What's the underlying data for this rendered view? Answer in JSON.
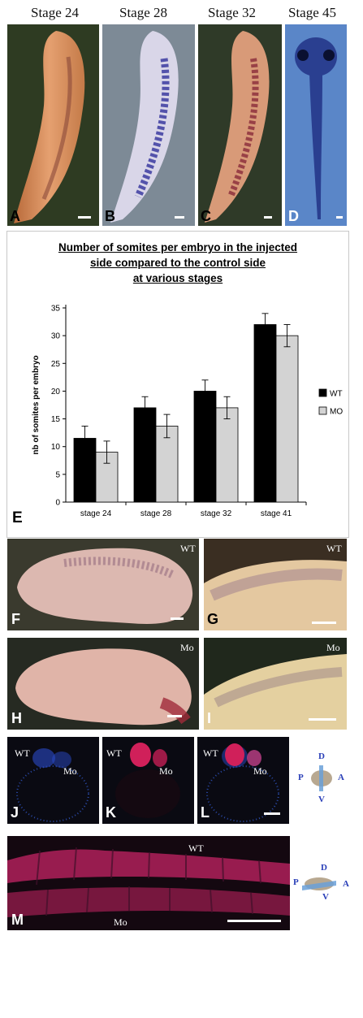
{
  "top_row": {
    "stages": [
      "Stage 24",
      "Stage 28",
      "Stage 32",
      "Stage 45"
    ],
    "letters": [
      "A",
      "B",
      "C",
      "D"
    ]
  },
  "chart_data": {
    "type": "bar",
    "panel_letter": "E",
    "title_lines": [
      "Number of somites per embryo in the injected",
      "side compared to the control side",
      "at various stages"
    ],
    "categories": [
      "stage 24",
      "stage 28",
      "stage 32",
      "stage 41"
    ],
    "series": [
      {
        "name": "WT",
        "values": [
          11.5,
          17,
          20,
          32
        ],
        "errors": [
          2.2,
          2.0,
          2.0,
          2.0
        ],
        "color": "#000000"
      },
      {
        "name": "MO",
        "values": [
          9,
          13.7,
          17,
          30
        ],
        "errors": [
          2.0,
          2.1,
          2.0,
          2.0
        ],
        "color": "#d3d3d3"
      }
    ],
    "xlabel": "",
    "ylabel": "nb of somites per embryo",
    "ylim": [
      0,
      35
    ],
    "yticks": [
      0,
      5,
      10,
      15,
      20,
      25,
      30,
      35
    ],
    "grid": false,
    "legend": "right"
  },
  "middle_panels": {
    "F": {
      "letter": "F",
      "tag": "WT"
    },
    "G": {
      "letter": "G",
      "tag": "WT"
    },
    "H": {
      "letter": "H",
      "tag": "Mo"
    },
    "I": {
      "letter": "I",
      "tag": "Mo"
    }
  },
  "section_panels": {
    "J": {
      "letter": "J",
      "tag_wt": "WT",
      "tag_mo": "Mo"
    },
    "K": {
      "letter": "K",
      "tag_wt": "WT",
      "tag_mo": "Mo"
    },
    "L": {
      "letter": "L",
      "tag_wt": "WT",
      "tag_mo": "Mo"
    },
    "orientation_1": {
      "d": "D",
      "v": "V",
      "p": "P",
      "a": "A"
    }
  },
  "bottom_panel": {
    "letter": "M",
    "tag_wt": "WT",
    "tag_mo": "Mo",
    "orientation_2": {
      "d": "D",
      "v": "V",
      "p": "P",
      "a": "A"
    }
  },
  "colors": {
    "embryo_orange": "#d98a5c",
    "embryo_purple_bg": "#c9c6dc",
    "section_bg": "#0a0a12",
    "fluor_red": "#d0205a",
    "fluor_blue": "#3060d8"
  }
}
